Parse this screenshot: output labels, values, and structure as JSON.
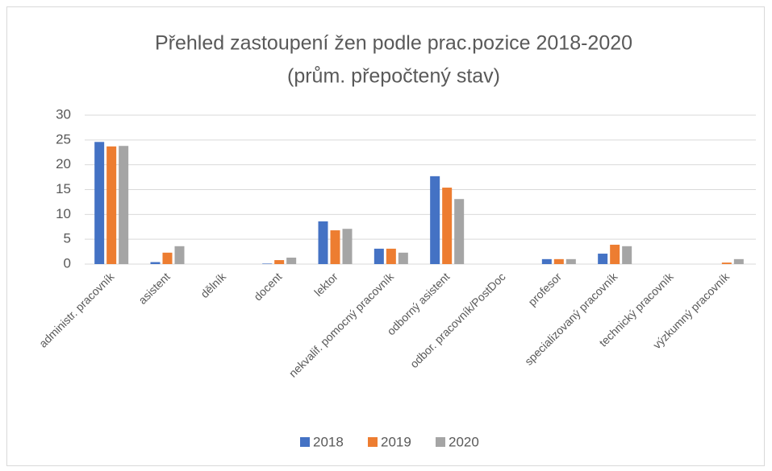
{
  "chart_data": {
    "type": "bar",
    "title": "Přehled zastoupení žen podle prac.pozice 2018-2020",
    "subtitle": "(prům. přepočtený stav)",
    "categories": [
      "administr. pracovník",
      "asistent",
      "dělník",
      "docent",
      "lektor",
      "nekvalif. pomocný pracovník",
      "odborný asistent",
      "odbor. pracovník/PostDoc",
      "profesor",
      "specializovaný pracovník",
      "technický pracovník",
      "výzkumný pracovník"
    ],
    "series": [
      {
        "name": "2018",
        "color": "#4472c4",
        "values": [
          24.6,
          0.4,
          0,
          0.1,
          8.6,
          3.1,
          17.7,
          0,
          1.0,
          2.1,
          0,
          0
        ]
      },
      {
        "name": "2019",
        "color": "#ed7d31",
        "values": [
          23.7,
          2.3,
          0,
          0.8,
          6.8,
          3.1,
          15.4,
          0,
          1.0,
          3.9,
          0,
          0.3
        ]
      },
      {
        "name": "2020",
        "color": "#a5a5a5",
        "values": [
          23.8,
          3.6,
          0,
          1.3,
          7.1,
          2.3,
          13.1,
          0,
          1.0,
          3.6,
          0,
          1.0
        ]
      }
    ],
    "ylim": [
      0,
      30
    ],
    "yticks": [
      0,
      5,
      10,
      15,
      20,
      25,
      30
    ],
    "grid": true,
    "legend": "bottom"
  }
}
